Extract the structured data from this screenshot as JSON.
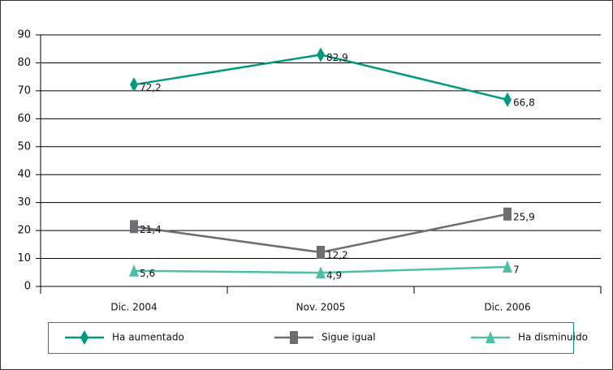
{
  "chart_data": {
    "type": "line",
    "categories": [
      "Dic. 2004",
      "Nov. 2005",
      "Dic. 2006"
    ],
    "series": [
      {
        "name": "Ha aumentado",
        "color": "#00997f",
        "marker": "diamond",
        "values": [
          72.2,
          82.9,
          66.8
        ],
        "value_labels": [
          "72,2",
          "82,9",
          "66,8"
        ]
      },
      {
        "name": "Sigue igual",
        "color": "#6d6e71",
        "marker": "square",
        "values": [
          21.4,
          12.2,
          25.9
        ],
        "value_labels": [
          "21,4",
          "12,2",
          "25,9"
        ]
      },
      {
        "name": "Ha disminuido",
        "color": "#4dbfa6",
        "marker": "triangle",
        "values": [
          5.6,
          4.9,
          7
        ],
        "value_labels": [
          "5,6",
          "4,9",
          "7"
        ]
      }
    ],
    "ylim": [
      0,
      90
    ],
    "yticks": [
      0,
      10,
      20,
      30,
      40,
      50,
      60,
      70,
      80,
      90
    ],
    "grid": true,
    "legend": "bottom"
  }
}
